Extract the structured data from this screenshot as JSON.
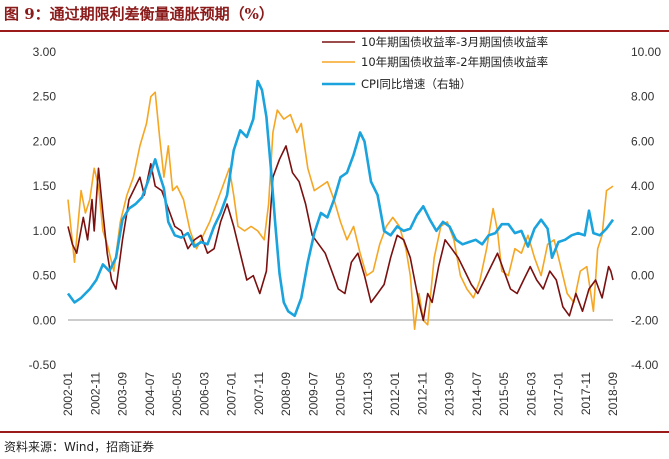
{
  "header": {
    "title": "图 9：通过期限利差衡量通胀预期（%）"
  },
  "footer": {
    "source": "资料来源：Wind，招商证券"
  },
  "chart_data": {
    "type": "line",
    "x": [
      "2002-01",
      "2002-11",
      "2003-09",
      "2004-07",
      "2005-05",
      "2006-03",
      "2007-01",
      "2007-11",
      "2008-09",
      "2009-07",
      "2010-05",
      "2011-03",
      "2012-01",
      "2012-11",
      "2013-09",
      "2014-07",
      "2015-05",
      "2016-03",
      "2017-01",
      "2017-11",
      "2018-09"
    ],
    "left_axis": {
      "range": [
        -0.5,
        3.0
      ],
      "ticks": [
        "-0.50",
        "0.00",
        "0.50",
        "1.00",
        "1.50",
        "2.00",
        "2.50",
        "3.00"
      ]
    },
    "right_axis": {
      "range": [
        -4.0,
        10.0
      ],
      "ticks": [
        "-4.00",
        "-2.00",
        "0.00",
        "2.00",
        "4.00",
        "6.00",
        "8.00",
        "10.00"
      ]
    },
    "legend_position": "top-right",
    "series": [
      {
        "name": "10年期国债收益率-3月期国债收益率",
        "axis": "left",
        "color": "#7a1010",
        "anchors": [
          [
            0,
            1.05
          ],
          [
            2,
            0.85
          ],
          [
            4,
            0.75
          ],
          [
            7,
            1.15
          ],
          [
            9,
            0.9
          ],
          [
            11,
            1.35
          ],
          [
            12,
            1.0
          ],
          [
            14,
            1.7
          ],
          [
            16,
            1.2
          ],
          [
            18,
            0.75
          ],
          [
            20,
            0.45
          ],
          [
            22,
            0.35
          ],
          [
            25,
            0.9
          ],
          [
            28,
            1.35
          ],
          [
            30,
            1.45
          ],
          [
            33,
            1.6
          ],
          [
            35,
            1.4
          ],
          [
            38,
            1.75
          ],
          [
            40,
            1.5
          ],
          [
            43,
            1.45
          ],
          [
            46,
            1.25
          ],
          [
            49,
            1.05
          ],
          [
            52,
            1.0
          ],
          [
            55,
            0.8
          ],
          [
            58,
            0.9
          ],
          [
            61,
            0.95
          ],
          [
            64,
            0.75
          ],
          [
            67,
            0.8
          ],
          [
            70,
            1.1
          ],
          [
            73,
            1.3
          ],
          [
            76,
            1.05
          ],
          [
            79,
            0.75
          ],
          [
            82,
            0.45
          ],
          [
            85,
            0.5
          ],
          [
            88,
            0.3
          ],
          [
            91,
            0.55
          ],
          [
            94,
            1.6
          ],
          [
            97,
            1.8
          ],
          [
            100,
            1.95
          ],
          [
            103,
            1.65
          ],
          [
            106,
            1.55
          ],
          [
            109,
            1.3
          ],
          [
            112,
            0.95
          ],
          [
            115,
            0.85
          ],
          [
            118,
            0.75
          ],
          [
            121,
            0.55
          ],
          [
            124,
            0.35
          ],
          [
            127,
            0.3
          ],
          [
            130,
            0.65
          ],
          [
            133,
            0.75
          ],
          [
            136,
            0.5
          ],
          [
            139,
            0.2
          ],
          [
            142,
            0.3
          ],
          [
            145,
            0.4
          ],
          [
            148,
            0.7
          ],
          [
            151,
            0.95
          ],
          [
            154,
            0.9
          ],
          [
            157,
            0.7
          ],
          [
            159,
            0.45
          ],
          [
            161,
            0.2
          ],
          [
            163,
            0.0
          ],
          [
            165,
            0.3
          ],
          [
            167,
            0.2
          ],
          [
            170,
            0.6
          ],
          [
            173,
            0.9
          ],
          [
            176,
            0.8
          ],
          [
            179,
            0.7
          ],
          [
            182,
            0.55
          ],
          [
            185,
            0.4
          ],
          [
            188,
            0.3
          ],
          [
            191,
            0.45
          ],
          [
            194,
            0.6
          ],
          [
            197,
            0.75
          ],
          [
            200,
            0.55
          ],
          [
            203,
            0.35
          ],
          [
            206,
            0.3
          ],
          [
            209,
            0.45
          ],
          [
            212,
            0.6
          ],
          [
            215,
            0.45
          ],
          [
            218,
            0.35
          ],
          [
            221,
            0.55
          ],
          [
            224,
            0.45
          ],
          [
            227,
            0.15
          ],
          [
            230,
            0.05
          ],
          [
            233,
            0.3
          ],
          [
            236,
            0.1
          ],
          [
            239,
            0.35
          ],
          [
            242,
            0.45
          ],
          [
            245,
            0.25
          ],
          [
            248,
            0.6
          ],
          [
            249,
            0.55
          ],
          [
            250,
            0.45
          ]
        ]
      },
      {
        "name": "10年期国债收益率-2年期国债收益率",
        "axis": "left",
        "color": "#f5a623",
        "anchors": [
          [
            0,
            1.35
          ],
          [
            3,
            0.65
          ],
          [
            6,
            1.45
          ],
          [
            8,
            1.2
          ],
          [
            10,
            1.35
          ],
          [
            12,
            1.7
          ],
          [
            14,
            1.5
          ],
          [
            16,
            1.0
          ],
          [
            18,
            0.85
          ],
          [
            21,
            0.55
          ],
          [
            24,
            1.1
          ],
          [
            27,
            1.4
          ],
          [
            30,
            1.6
          ],
          [
            33,
            1.95
          ],
          [
            36,
            2.2
          ],
          [
            38,
            2.5
          ],
          [
            40,
            2.55
          ],
          [
            42,
            2.05
          ],
          [
            44,
            1.6
          ],
          [
            46,
            1.95
          ],
          [
            48,
            1.45
          ],
          [
            50,
            1.5
          ],
          [
            53,
            1.35
          ],
          [
            56,
            1.0
          ],
          [
            59,
            0.8
          ],
          [
            62,
            0.95
          ],
          [
            65,
            1.1
          ],
          [
            68,
            1.3
          ],
          [
            71,
            1.5
          ],
          [
            74,
            1.7
          ],
          [
            76,
            1.4
          ],
          [
            78,
            1.05
          ],
          [
            81,
            1.0
          ],
          [
            84,
            1.05
          ],
          [
            87,
            1.0
          ],
          [
            90,
            0.9
          ],
          [
            92,
            1.3
          ],
          [
            94,
            2.1
          ],
          [
            96,
            2.35
          ],
          [
            99,
            2.25
          ],
          [
            102,
            2.3
          ],
          [
            105,
            2.1
          ],
          [
            107,
            2.2
          ],
          [
            110,
            1.7
          ],
          [
            113,
            1.45
          ],
          [
            116,
            1.5
          ],
          [
            119,
            1.55
          ],
          [
            122,
            1.35
          ],
          [
            125,
            1.1
          ],
          [
            128,
            0.9
          ],
          [
            131,
            1.05
          ],
          [
            134,
            0.75
          ],
          [
            137,
            0.5
          ],
          [
            140,
            0.55
          ],
          [
            143,
            0.85
          ],
          [
            146,
            1.05
          ],
          [
            149,
            1.15
          ],
          [
            152,
            1.05
          ],
          [
            155,
            0.8
          ],
          [
            157,
            0.5
          ],
          [
            159,
            -0.1
          ],
          [
            161,
            0.3
          ],
          [
            163,
            0.0
          ],
          [
            165,
            -0.05
          ],
          [
            168,
            0.7
          ],
          [
            171,
            1.05
          ],
          [
            174,
            1.1
          ],
          [
            177,
            0.9
          ],
          [
            180,
            0.5
          ],
          [
            183,
            0.35
          ],
          [
            186,
            0.25
          ],
          [
            189,
            0.45
          ],
          [
            192,
            0.8
          ],
          [
            195,
            1.25
          ],
          [
            197,
            1.0
          ],
          [
            199,
            0.55
          ],
          [
            202,
            0.5
          ],
          [
            205,
            0.8
          ],
          [
            208,
            0.75
          ],
          [
            211,
            0.95
          ],
          [
            214,
            0.7
          ],
          [
            217,
            0.5
          ],
          [
            220,
            0.85
          ],
          [
            223,
            0.9
          ],
          [
            226,
            0.6
          ],
          [
            229,
            0.3
          ],
          [
            232,
            0.2
          ],
          [
            235,
            0.55
          ],
          [
            238,
            0.6
          ],
          [
            241,
            0.1
          ],
          [
            243,
            0.8
          ],
          [
            245,
            0.95
          ],
          [
            247,
            1.45
          ],
          [
            250,
            1.5
          ]
        ]
      },
      {
        "name": "CPI同比增速（右轴）",
        "axis": "right",
        "color": "#1aa3dc",
        "anchors": [
          [
            0,
            -0.8
          ],
          [
            3,
            -1.2
          ],
          [
            6,
            -1.0
          ],
          [
            10,
            -0.6
          ],
          [
            13,
            -0.2
          ],
          [
            16,
            0.5
          ],
          [
            19,
            0.2
          ],
          [
            22,
            0.8
          ],
          [
            25,
            2.5
          ],
          [
            28,
            3.0
          ],
          [
            31,
            3.2
          ],
          [
            34,
            3.5
          ],
          [
            37,
            4.3
          ],
          [
            40,
            5.2
          ],
          [
            42,
            4.5
          ],
          [
            44,
            3.9
          ],
          [
            46,
            2.4
          ],
          [
            49,
            1.8
          ],
          [
            52,
            1.7
          ],
          [
            55,
            1.9
          ],
          [
            58,
            1.3
          ],
          [
            61,
            1.5
          ],
          [
            64,
            1.4
          ],
          [
            67,
            2.2
          ],
          [
            70,
            2.8
          ],
          [
            73,
            3.6
          ],
          [
            76,
            5.6
          ],
          [
            79,
            6.5
          ],
          [
            82,
            6.2
          ],
          [
            85,
            7.0
          ],
          [
            87,
            8.7
          ],
          [
            89,
            8.3
          ],
          [
            91,
            7.1
          ],
          [
            93,
            4.9
          ],
          [
            95,
            2.4
          ],
          [
            97,
            0.1
          ],
          [
            99,
            -1.2
          ],
          [
            101,
            -1.6
          ],
          [
            104,
            -1.8
          ],
          [
            107,
            -1.0
          ],
          [
            110,
            0.6
          ],
          [
            113,
            1.9
          ],
          [
            116,
            2.8
          ],
          [
            119,
            2.6
          ],
          [
            122,
            3.4
          ],
          [
            125,
            4.4
          ],
          [
            128,
            4.6
          ],
          [
            131,
            5.4
          ],
          [
            134,
            6.4
          ],
          [
            136,
            6.0
          ],
          [
            139,
            4.2
          ],
          [
            142,
            3.6
          ],
          [
            145,
            2.0
          ],
          [
            148,
            1.8
          ],
          [
            151,
            2.2
          ],
          [
            154,
            2.0
          ],
          [
            157,
            2.1
          ],
          [
            160,
            2.7
          ],
          [
            163,
            3.1
          ],
          [
            166,
            2.5
          ],
          [
            169,
            2.0
          ],
          [
            172,
            2.4
          ],
          [
            175,
            2.2
          ],
          [
            178,
            1.6
          ],
          [
            181,
            1.4
          ],
          [
            184,
            1.5
          ],
          [
            187,
            1.6
          ],
          [
            190,
            1.4
          ],
          [
            193,
            1.8
          ],
          [
            196,
            1.9
          ],
          [
            199,
            2.3
          ],
          [
            202,
            2.3
          ],
          [
            205,
            1.9
          ],
          [
            208,
            2.0
          ],
          [
            211,
            1.3
          ],
          [
            214,
            2.1
          ],
          [
            217,
            2.5
          ],
          [
            220,
            2.1
          ],
          [
            222,
            0.8
          ],
          [
            225,
            1.5
          ],
          [
            228,
            1.6
          ],
          [
            231,
            1.8
          ],
          [
            234,
            1.9
          ],
          [
            237,
            1.8
          ],
          [
            239,
            2.9
          ],
          [
            241,
            1.9
          ],
          [
            244,
            1.8
          ],
          [
            247,
            2.1
          ],
          [
            250,
            2.5
          ]
        ]
      }
    ],
    "x_index_range": [
      0,
      250
    ]
  }
}
